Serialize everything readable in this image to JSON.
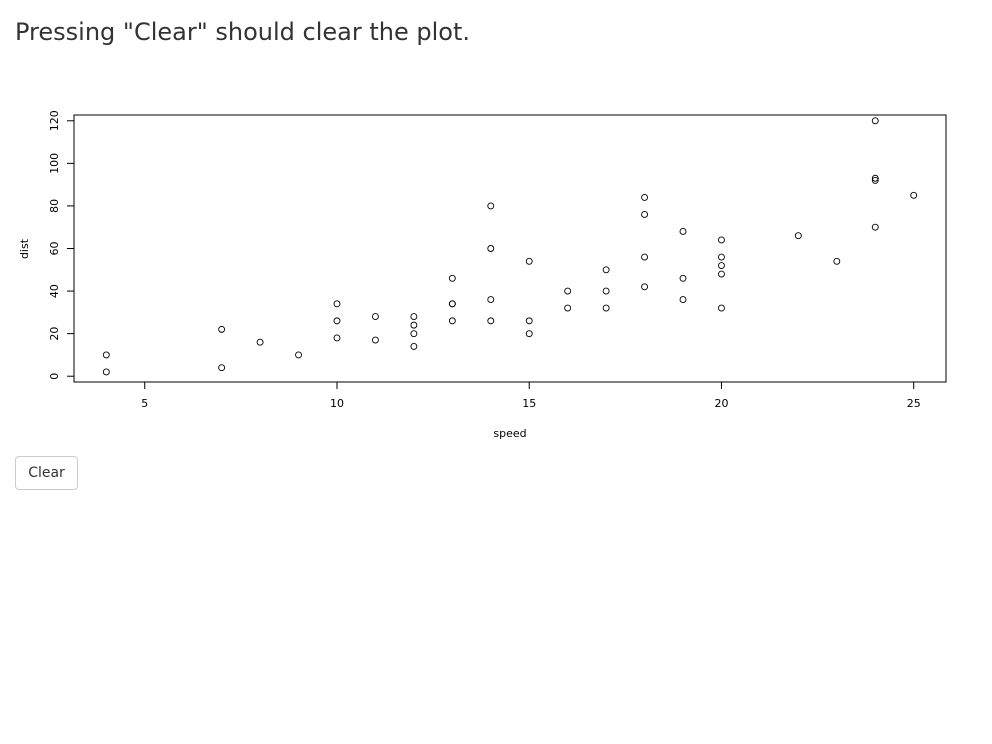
{
  "header": {
    "title": "Pressing \"Clear\" should clear the plot."
  },
  "controls": {
    "clear_label": "Clear"
  },
  "chart_data": {
    "type": "scatter",
    "xlabel": "speed",
    "ylabel": "dist",
    "xlim": [
      3.16,
      25.84
    ],
    "ylim": [
      -2.72,
      122.72
    ],
    "xticks": [
      5,
      10,
      15,
      20,
      25
    ],
    "yticks": [
      0,
      20,
      40,
      60,
      80,
      100,
      120
    ],
    "grid": false,
    "marker": "open-circle",
    "x": [
      4,
      4,
      7,
      7,
      8,
      9,
      10,
      10,
      10,
      11,
      11,
      12,
      12,
      12,
      12,
      13,
      13,
      13,
      13,
      14,
      14,
      14,
      14,
      15,
      15,
      15,
      16,
      16,
      17,
      17,
      17,
      18,
      18,
      18,
      18,
      19,
      19,
      19,
      20,
      20,
      20,
      20,
      20,
      22,
      23,
      24,
      24,
      24,
      24,
      25
    ],
    "y": [
      2,
      10,
      4,
      22,
      16,
      10,
      18,
      26,
      34,
      17,
      28,
      14,
      20,
      24,
      28,
      26,
      34,
      34,
      46,
      26,
      36,
      60,
      80,
      20,
      26,
      54,
      32,
      40,
      32,
      40,
      50,
      42,
      56,
      76,
      84,
      36,
      46,
      68,
      32,
      48,
      52,
      56,
      64,
      66,
      54,
      70,
      92,
      93,
      120,
      85
    ]
  }
}
